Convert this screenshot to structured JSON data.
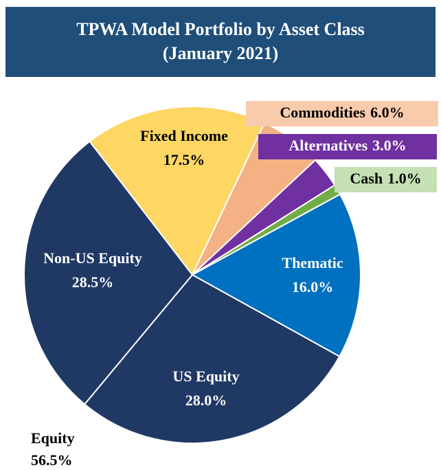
{
  "chart_data": {
    "type": "pie",
    "title": [
      "TPWA Model Portfolio by Asset Class",
      "(January 2021)"
    ],
    "categories": [
      "Fixed Income",
      "Commodities",
      "Alternatives",
      "Cash",
      "Thematic",
      "US Equity",
      "Non-US Equity"
    ],
    "values": [
      17.5,
      6.0,
      3.0,
      1.0,
      16.0,
      28.0,
      28.5
    ],
    "value_labels": [
      "17.5%",
      "6.0%",
      "3.0%",
      "1.0%",
      "16.0%",
      "28.0%",
      "28.5%"
    ],
    "colors": [
      "#fdd663",
      "#f4b183",
      "#7030a0",
      "#70ad47",
      "#0070c0",
      "#203864",
      "#203864"
    ],
    "annotation": {
      "text": "Equity",
      "value_label": "56.5%"
    }
  }
}
